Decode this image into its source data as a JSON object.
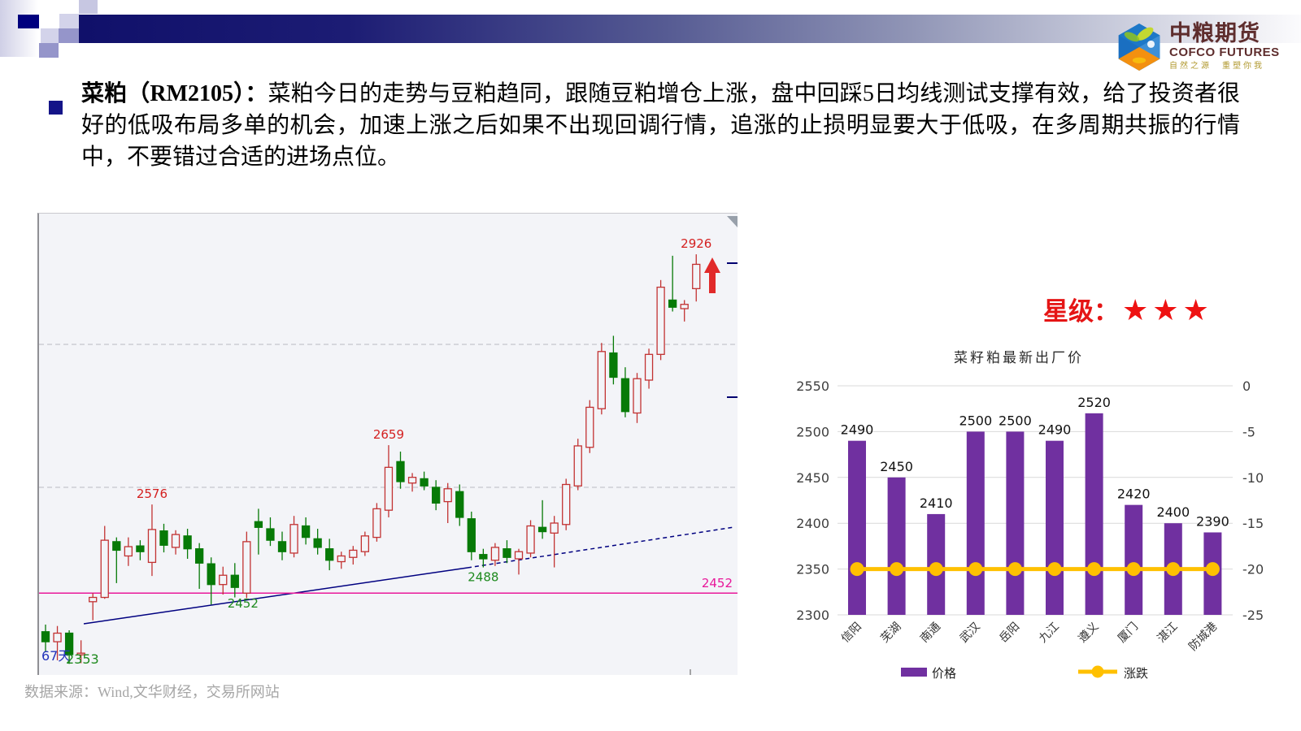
{
  "header": {
    "logo": {
      "name_cn": "中粮期货",
      "name_en": "COFCO FUTURES",
      "tagline": "自然之源　重塑你我"
    }
  },
  "commentary": {
    "lead": "菜粕（RM2105）：",
    "body": "菜粕今日的走势与豆粕趋同，跟随豆粕增仓上涨，盘中回踩5日均线测试支撑有效，给了投资者很好的低吸布局多单的机会，加速上涨之后如果不出现回调行情，追涨的止损明显要大于低吸，在多周期共振的行情中，不要错过合适的进场点位。"
  },
  "rating": {
    "label": "星级：",
    "stars": "★★★"
  },
  "footer": {
    "source": "数据来源：Wind,文华财经，交易所网站"
  },
  "chart_data": [
    {
      "type": "candlestick",
      "description": "菜粕 RM2105 日线",
      "up_color": "#c23232",
      "down_color": "#077a07",
      "background": "#f3f4f8",
      "gridlines": [
        2600,
        2800
      ],
      "support_line": {
        "price": 2452,
        "label": "2452",
        "color": "#e8189a"
      },
      "trendline": {
        "color": "#000080",
        "style": "solid-then-dashed"
      },
      "swing_labels": [
        {
          "text": "2926",
          "price": 2926,
          "anchor_candle": 55,
          "placement": "above",
          "color": "#d42020"
        },
        {
          "text": "2659",
          "price": 2659,
          "anchor_candle": 29,
          "placement": "above",
          "color": "#d42020"
        },
        {
          "text": "2576",
          "price": 2576,
          "anchor_candle": 9,
          "placement": "above",
          "color": "#d42020"
        },
        {
          "text": "2488",
          "price": 2488,
          "anchor_candle": 37,
          "placement": "below",
          "color": "#1e8a1e"
        },
        {
          "text": "2452",
          "price": 2452,
          "anchor_candle": 16,
          "placement": "below_line",
          "color": "#1e8a1e"
        }
      ],
      "corner_labels": [
        {
          "text": "67天",
          "color": "#2233bb"
        },
        {
          "text": "2353",
          "color": "#1e8a1e"
        }
      ],
      "marker": {
        "type": "up-arrow",
        "color": "#e12a2a"
      },
      "candles": [
        [
          2398,
          2408,
          2370,
          2384
        ],
        [
          2384,
          2406,
          2358,
          2396
        ],
        [
          2396,
          2400,
          2353,
          2366
        ],
        [
          2366,
          2386,
          2354,
          2368
        ],
        [
          2440,
          2452,
          2414,
          2446
        ],
        [
          2446,
          2546,
          2444,
          2526
        ],
        [
          2524,
          2530,
          2466,
          2512
        ],
        [
          2504,
          2530,
          2490,
          2517
        ],
        [
          2518,
          2526,
          2498,
          2510
        ],
        [
          2495,
          2576,
          2476,
          2541
        ],
        [
          2539,
          2549,
          2509,
          2519
        ],
        [
          2516,
          2540,
          2506,
          2534
        ],
        [
          2532,
          2542,
          2500,
          2514
        ],
        [
          2514,
          2522,
          2458,
          2494
        ],
        [
          2493,
          2502,
          2436,
          2464
        ],
        [
          2464,
          2489,
          2450,
          2477
        ],
        [
          2477,
          2494,
          2446,
          2460
        ],
        [
          2452,
          2538,
          2445,
          2524
        ],
        [
          2552,
          2570,
          2506,
          2544
        ],
        [
          2542,
          2558,
          2518,
          2526
        ],
        [
          2524,
          2538,
          2498,
          2510
        ],
        [
          2508,
          2560,
          2502,
          2548
        ],
        [
          2546,
          2558,
          2520,
          2530
        ],
        [
          2528,
          2542,
          2506,
          2516
        ],
        [
          2514,
          2528,
          2484,
          2498
        ],
        [
          2496,
          2510,
          2486,
          2504
        ],
        [
          2502,
          2518,
          2492,
          2512
        ],
        [
          2510,
          2538,
          2504,
          2532
        ],
        [
          2530,
          2578,
          2524,
          2570
        ],
        [
          2568,
          2659,
          2558,
          2628
        ],
        [
          2636,
          2650,
          2598,
          2608
        ],
        [
          2606,
          2620,
          2594,
          2614
        ],
        [
          2612,
          2622,
          2596,
          2602
        ],
        [
          2600,
          2610,
          2568,
          2578
        ],
        [
          2580,
          2606,
          2550,
          2598
        ],
        [
          2594,
          2604,
          2546,
          2558
        ],
        [
          2556,
          2566,
          2498,
          2510
        ],
        [
          2506,
          2514,
          2488,
          2500
        ],
        [
          2498,
          2522,
          2490,
          2516
        ],
        [
          2514,
          2526,
          2494,
          2502
        ],
        [
          2500,
          2514,
          2478,
          2510
        ],
        [
          2508,
          2554,
          2502,
          2546
        ],
        [
          2544,
          2582,
          2528,
          2538
        ],
        [
          2536,
          2560,
          2488,
          2550
        ],
        [
          2548,
          2612,
          2540,
          2604
        ],
        [
          2602,
          2668,
          2596,
          2658
        ],
        [
          2656,
          2722,
          2648,
          2712
        ],
        [
          2710,
          2802,
          2702,
          2790
        ],
        [
          2788,
          2812,
          2744,
          2754
        ],
        [
          2752,
          2768,
          2698,
          2706
        ],
        [
          2704,
          2760,
          2690,
          2752
        ],
        [
          2750,
          2794,
          2738,
          2786
        ],
        [
          2786,
          2890,
          2778,
          2880
        ],
        [
          2862,
          2924,
          2846,
          2852
        ],
        [
          2850,
          2862,
          2832,
          2856
        ],
        [
          2878,
          2926,
          2860,
          2912
        ]
      ]
    },
    {
      "type": "bar",
      "title": "菜籽粕最新出厂价",
      "categories": [
        "信阳",
        "芜湖",
        "南通",
        "武汉",
        "岳阳",
        "九江",
        "遵义",
        "厦门",
        "湛江",
        "防城港"
      ],
      "series": [
        {
          "name": "价格",
          "type": "bar",
          "axis": "left",
          "color": "#7030A0",
          "values": [
            2490,
            2450,
            2410,
            2500,
            2500,
            2490,
            2520,
            2420,
            2400,
            2390
          ]
        },
        {
          "name": "涨跌",
          "type": "line",
          "axis": "right",
          "color": "#FFC000",
          "values": [
            -20,
            -20,
            -20,
            -20,
            -20,
            -20,
            -20,
            -20,
            -20,
            -20
          ]
        }
      ],
      "left_axis": {
        "ticks": [
          2550,
          2500,
          2450,
          2400,
          2350,
          2300
        ]
      },
      "right_axis": {
        "ticks": [
          0,
          -5,
          -10,
          -15,
          -20,
          -25
        ]
      },
      "grid": true,
      "data_labels": true,
      "legend_position": "bottom"
    }
  ]
}
